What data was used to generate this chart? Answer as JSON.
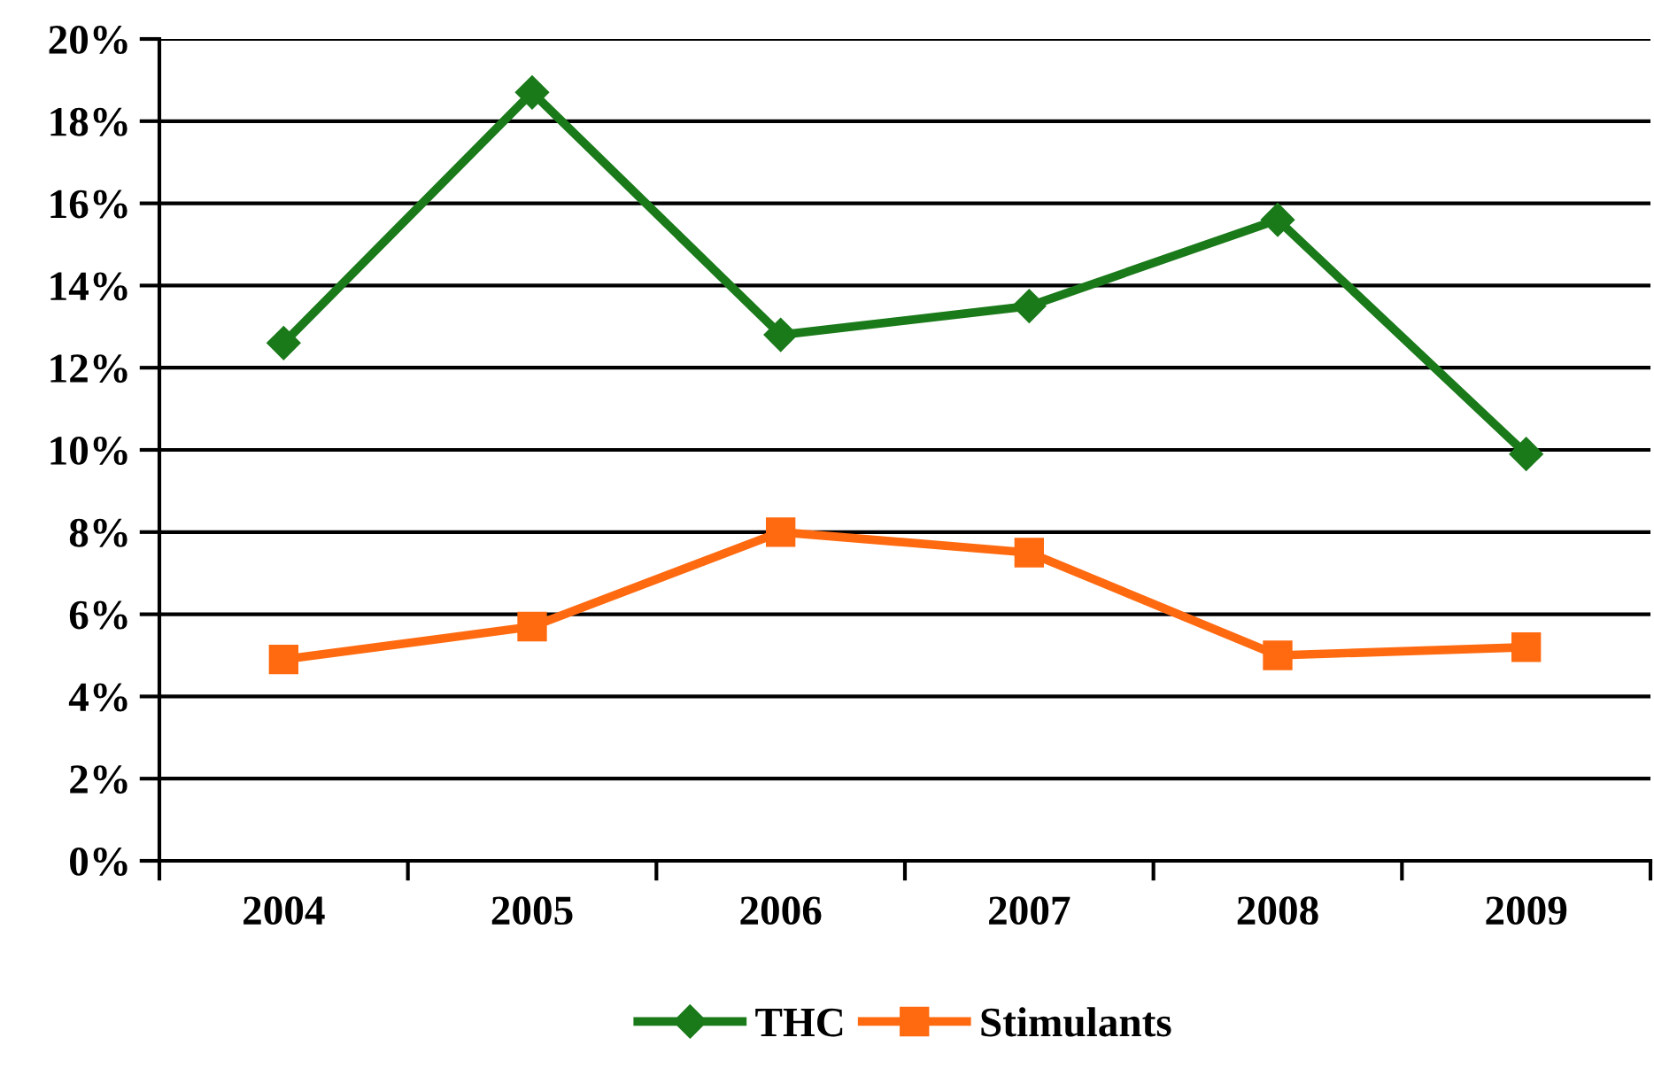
{
  "chart_data": {
    "type": "line",
    "categories": [
      "2004",
      "2005",
      "2006",
      "2007",
      "2008",
      "2009"
    ],
    "series": [
      {
        "name": "THC",
        "color": "#1a7a1a",
        "marker": "diamond",
        "values": [
          12.6,
          18.7,
          12.8,
          13.5,
          15.6,
          9.9
        ]
      },
      {
        "name": "Stimulants",
        "color": "#ff6a10",
        "marker": "square",
        "values": [
          4.9,
          5.7,
          8.0,
          7.5,
          5.0,
          5.2
        ]
      }
    ],
    "ylim": [
      0,
      20
    ],
    "yticks": [
      {
        "value": 0,
        "label": "0%"
      },
      {
        "value": 2,
        "label": "2%"
      },
      {
        "value": 4,
        "label": "4%"
      },
      {
        "value": 6,
        "label": "6%"
      },
      {
        "value": 8,
        "label": "8%"
      },
      {
        "value": 10,
        "label": "10%"
      },
      {
        "value": 12,
        "label": "12%"
      },
      {
        "value": 14,
        "label": "14%"
      },
      {
        "value": 16,
        "label": "16%"
      },
      {
        "value": 18,
        "label": "18%"
      },
      {
        "value": 20,
        "label": "20%"
      }
    ],
    "grid": "y",
    "legend": "bottom",
    "line_style": "solid"
  }
}
